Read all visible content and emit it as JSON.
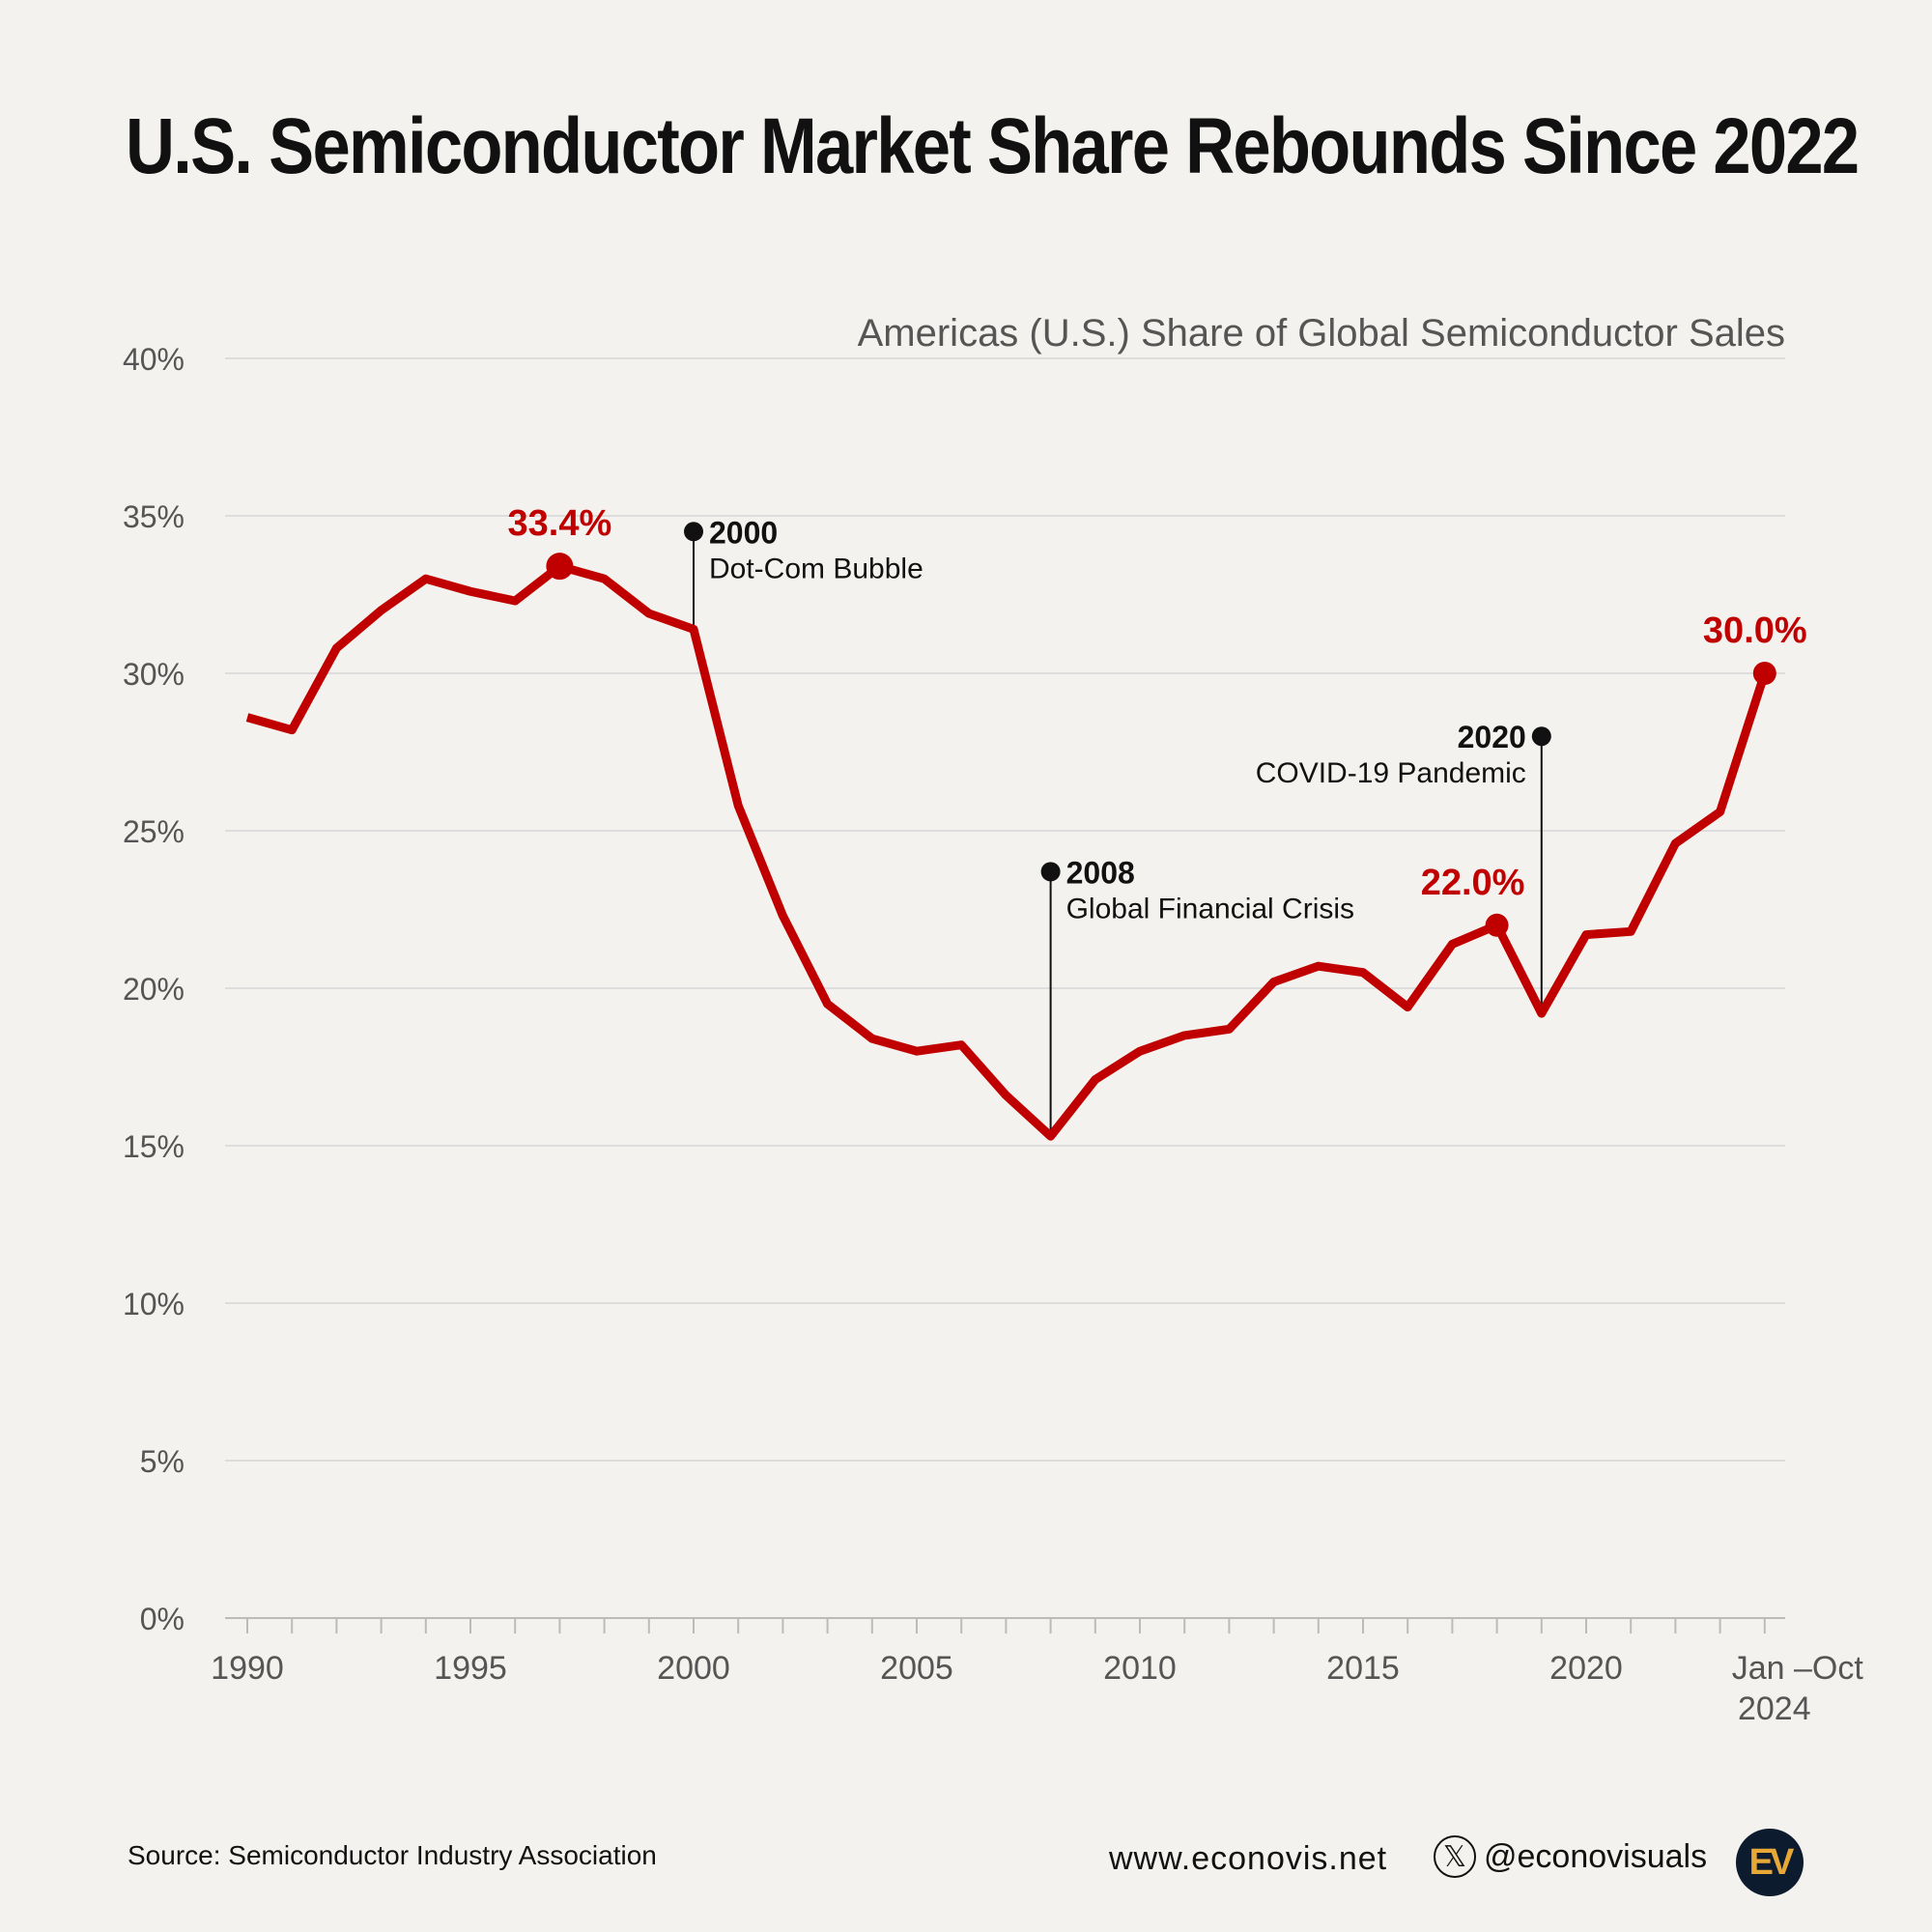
{
  "title": "U.S. Semiconductor Market Share Rebounds Since 2022",
  "chart_data": {
    "type": "line",
    "title": "Americas (U.S.) Share of Global Semiconductor Sales",
    "xlabel": "",
    "ylabel": "",
    "ylim": [
      0,
      40
    ],
    "yticks": [
      "0%",
      "5%",
      "10%",
      "15%",
      "20%",
      "25%",
      "30%",
      "35%",
      "40%"
    ],
    "ytick_values": [
      0,
      5,
      10,
      15,
      20,
      25,
      30,
      35,
      40
    ],
    "xticks": [
      {
        "x": 1990,
        "label": "1990"
      },
      {
        "x": 1995,
        "label": "1995"
      },
      {
        "x": 2000,
        "label": "2000"
      },
      {
        "x": 2005,
        "label": "2005"
      },
      {
        "x": 2010,
        "label": "2010"
      },
      {
        "x": 2015,
        "label": "2015"
      },
      {
        "x": 2020,
        "label": "2020"
      },
      {
        "x": 2024,
        "label": "Jan –Oct",
        "label2": "2024"
      }
    ],
    "x": [
      1990,
      1991,
      1992,
      1993,
      1994,
      1995,
      1996,
      1997,
      1998,
      1999,
      2000,
      2001,
      2002,
      2003,
      2004,
      2005,
      2006,
      2007,
      2008,
      2009,
      2010,
      2011,
      2012,
      2013,
      2014,
      2015,
      2016,
      2017,
      2018,
      2019,
      2020,
      2021,
      2022,
      2023,
      2024
    ],
    "series": [
      {
        "name": "Americas share",
        "color": "#c00000",
        "values": [
          28.6,
          28.2,
          30.8,
          32.0,
          33.0,
          32.6,
          32.3,
          33.4,
          33.0,
          31.9,
          31.4,
          25.8,
          22.3,
          19.5,
          18.4,
          18.0,
          18.2,
          16.6,
          15.3,
          17.1,
          18.0,
          18.5,
          18.7,
          20.2,
          20.7,
          20.5,
          19.4,
          21.4,
          22.0,
          19.2,
          21.7,
          21.8,
          24.6,
          25.6,
          30.0
        ]
      }
    ],
    "highlights": [
      {
        "x": 1997,
        "y": 33.4,
        "label": "33.4%"
      },
      {
        "x": 2018,
        "y": 22.0,
        "label": "22.0%"
      },
      {
        "x": 2024,
        "y": 30.0,
        "label": "30.0%"
      }
    ],
    "annotations": [
      {
        "x": 2000,
        "y_dot": 34.5,
        "year": "2000",
        "text": "Dot-Com Bubble",
        "side": "right"
      },
      {
        "x": 2008,
        "y_dot": 23.7,
        "year": "2008",
        "text": "Global Financial Crisis",
        "side": "right"
      },
      {
        "x": 2019,
        "y_dot": 28.0,
        "year": "2020",
        "text": "COVID-19 Pandemic",
        "side": "left"
      }
    ],
    "grid": true
  },
  "footer": {
    "source": "Source: Semiconductor Industry Association",
    "website": "www.econovis.net",
    "handle": "@econovisuals",
    "x_icon": "x-logo-icon",
    "logo": "EV"
  }
}
